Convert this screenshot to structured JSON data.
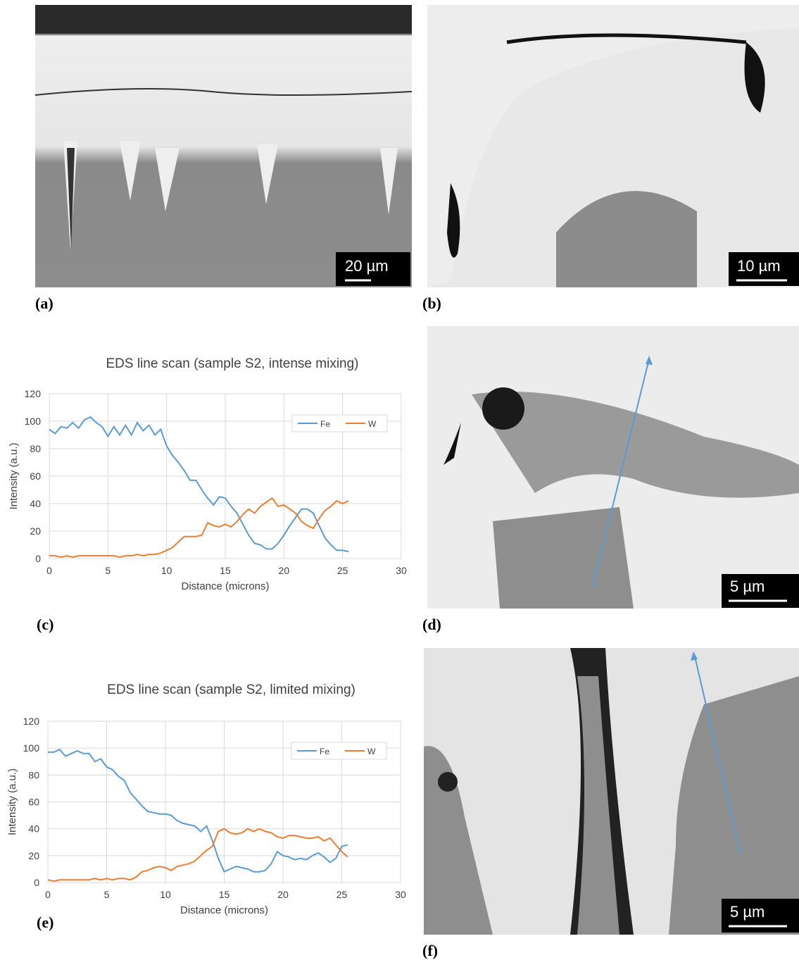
{
  "figure": {
    "panel_labels": [
      "(a)",
      "(b)",
      "(c)",
      "(d)",
      "(e)",
      "(f)"
    ],
    "scale_bars": [
      "20 µm",
      "10 µm",
      "5 µm",
      "5 µm"
    ]
  },
  "chart_data": [
    {
      "type": "line",
      "title": "EDS line scan (sample S2, intense mixing)",
      "x_label": "Distance (microns)",
      "y_label": "Intensity (a.u.)",
      "x": [
        0,
        0.5,
        1,
        1.5,
        2,
        2.5,
        3,
        3.5,
        4,
        4.5,
        5,
        5.5,
        6,
        6.5,
        7,
        7.5,
        8,
        8.5,
        9,
        9.5,
        10,
        10.5,
        11,
        11.5,
        12,
        12.5,
        13,
        13.5,
        14,
        14.5,
        15,
        15.5,
        16,
        16.5,
        17,
        17.5,
        18,
        18.5,
        19,
        19.5,
        20,
        20.5,
        21,
        21.5,
        22,
        22.5,
        23,
        23.5,
        24,
        24.5,
        25,
        25.5
      ],
      "series": [
        {
          "name": "Fe",
          "color": "#5b9bd5",
          "values": [
            94,
            91,
            96,
            95,
            99,
            95,
            101,
            103,
            99,
            96,
            89,
            96,
            90,
            97,
            90,
            99,
            93,
            97,
            90,
            94,
            82,
            75,
            70,
            64,
            57,
            57,
            50,
            44,
            39,
            45,
            44,
            38,
            33,
            25,
            17,
            11,
            10,
            7,
            7,
            11,
            17,
            24,
            30,
            36,
            36,
            33,
            24,
            15,
            10,
            6,
            6,
            5
          ]
        },
        {
          "name": "W",
          "color": "#ed7d31",
          "values": [
            2,
            2,
            1,
            2,
            1,
            2,
            2,
            2,
            2,
            2,
            2,
            2,
            1,
            2,
            2,
            3,
            2,
            3,
            3,
            4,
            6,
            8,
            12,
            16,
            16,
            16,
            17,
            26,
            24,
            23,
            25,
            23,
            27,
            32,
            36,
            33,
            38,
            41,
            44,
            38,
            39,
            36,
            33,
            27,
            24,
            22,
            29,
            35,
            38,
            42,
            40,
            42
          ]
        }
      ],
      "xlim": [
        0,
        30
      ],
      "xticks": [
        0,
        5,
        10,
        15,
        20,
        25,
        30
      ],
      "ylim": [
        0,
        120
      ],
      "yticks": [
        0,
        20,
        40,
        60,
        80,
        100,
        120
      ],
      "grid": true,
      "legend": "upper right"
    },
    {
      "type": "line",
      "title": "EDS line scan (sample S2, limited mixing)",
      "x_label": "Distance (microns)",
      "y_label": "Intensity (a.u.)",
      "x": [
        0,
        0.5,
        1,
        1.5,
        2,
        2.5,
        3,
        3.5,
        4,
        4.5,
        5,
        5.5,
        6,
        6.5,
        7,
        7.5,
        8,
        8.5,
        9,
        9.5,
        10,
        10.5,
        11,
        11.5,
        12,
        12.5,
        13,
        13.5,
        14,
        14.5,
        15,
        15.5,
        16,
        16.5,
        17,
        17.5,
        18,
        18.5,
        19,
        19.5,
        20,
        20.5,
        21,
        21.5,
        22,
        22.5,
        23,
        23.5,
        24,
        24.5,
        25,
        25.5
      ],
      "series": [
        {
          "name": "Fe",
          "color": "#5b9bd5",
          "values": [
            97,
            97,
            99,
            94,
            96,
            98,
            96,
            96,
            90,
            92,
            86,
            84,
            79,
            76,
            67,
            62,
            57,
            53,
            52,
            51,
            51,
            50,
            46,
            44,
            43,
            42,
            38,
            42,
            31,
            18,
            8,
            10,
            12,
            11,
            10,
            8,
            8,
            9,
            14,
            23,
            20,
            19,
            17,
            18,
            17,
            20,
            22,
            19,
            15,
            18,
            27,
            28
          ]
        },
        {
          "name": "W",
          "color": "#ed7d31",
          "values": [
            2,
            1,
            2,
            2,
            2,
            2,
            2,
            2,
            3,
            2,
            3,
            2,
            3,
            3,
            2,
            4,
            8,
            9,
            11,
            12,
            11,
            9,
            12,
            13,
            14,
            16,
            20,
            24,
            27,
            38,
            40,
            37,
            36,
            37,
            40,
            38,
            40,
            38,
            37,
            34,
            33,
            35,
            35,
            34,
            33,
            33,
            34,
            31,
            33,
            28,
            23,
            19
          ]
        }
      ],
      "xlim": [
        0,
        30
      ],
      "xticks": [
        0,
        5,
        10,
        15,
        20,
        25,
        30
      ],
      "ylim": [
        0,
        120
      ],
      "yticks": [
        0,
        20,
        40,
        60,
        80,
        100,
        120
      ],
      "grid": true,
      "legend": "upper right"
    }
  ]
}
